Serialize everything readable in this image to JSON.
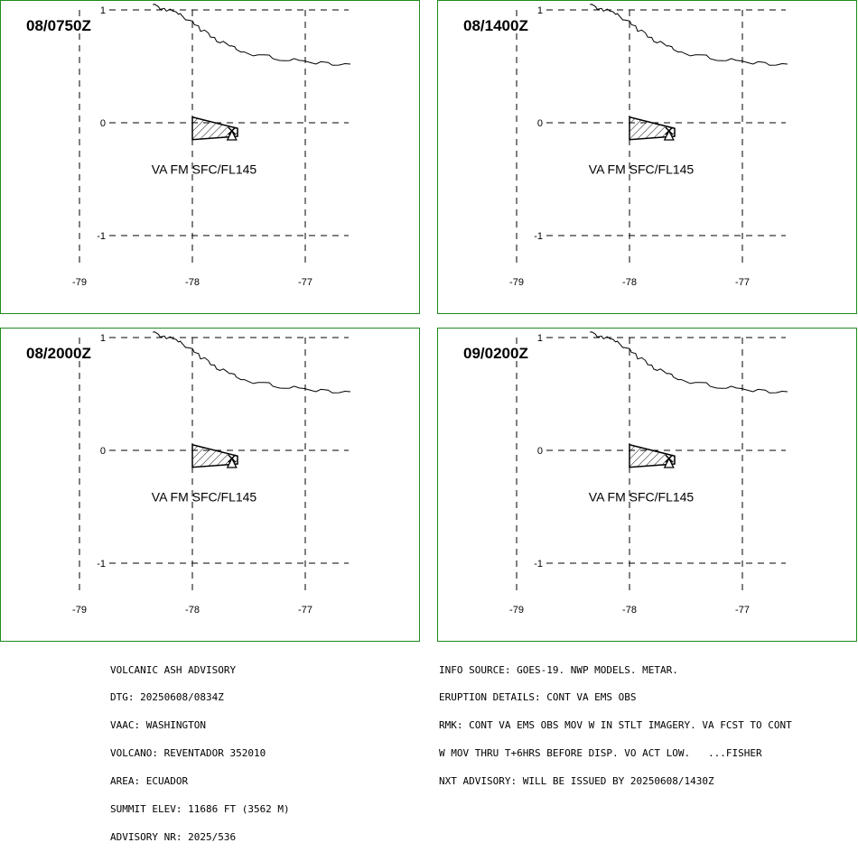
{
  "panels": [
    {
      "time": "08/0750Z",
      "layer_label": "VA FM SFC/FL145"
    },
    {
      "time": "08/1400Z",
      "layer_label": "VA FM SFC/FL145"
    },
    {
      "time": "08/2000Z",
      "layer_label": "VA FM SFC/FL145"
    },
    {
      "time": "09/0200Z",
      "layer_label": "VA FM SFC/FL145"
    }
  ],
  "map": {
    "lon_ticks": [
      "-79",
      "-78",
      "-77"
    ],
    "lat_ticks": [
      "1",
      "0",
      "-1"
    ],
    "lon_range": [
      -79.0,
      -76.6
    ],
    "lat_range": [
      1.0,
      -1.0
    ],
    "ash_polygon_lonlat": [
      [
        -78.0,
        0.05
      ],
      [
        -77.6,
        -0.05
      ],
      [
        -77.6,
        -0.12
      ],
      [
        -78.0,
        -0.15
      ]
    ],
    "volcano_lonlat": [
      -77.65,
      -0.08
    ],
    "coastline_lonlat": [
      [
        -78.35,
        1.05
      ],
      [
        -78.1,
        0.95
      ],
      [
        -77.8,
        0.75
      ],
      [
        -77.55,
        0.62
      ],
      [
        -77.1,
        0.55
      ],
      [
        -76.6,
        0.52
      ]
    ]
  },
  "footer_left": [
    "VOLCANIC ASH ADVISORY",
    "DTG: 20250608/0834Z",
    "VAAC: WASHINGTON",
    "VOLCANO: REVENTADOR 352010",
    "AREA: ECUADOR",
    "SUMMIT ELEV: 11686 FT (3562 M)",
    "ADVISORY NR: 2025/536"
  ],
  "footer_right": [
    "INFO SOURCE: GOES-19. NWP MODELS. METAR.",
    "ERUPTION DETAILS: CONT VA EMS OBS",
    "RMK: CONT VA EMS OBS MOV W IN STLT IMAGERY. VA FCST TO CONT",
    "W MOV THRU T+6HRS BEFORE DISP. VO ACT LOW.   ...FISHER",
    "NXT ADVISORY: WILL BE ISSUED BY 20250608/1430Z"
  ],
  "colors": {
    "panel_border": "#1e8a1e",
    "lines": "#000000"
  }
}
